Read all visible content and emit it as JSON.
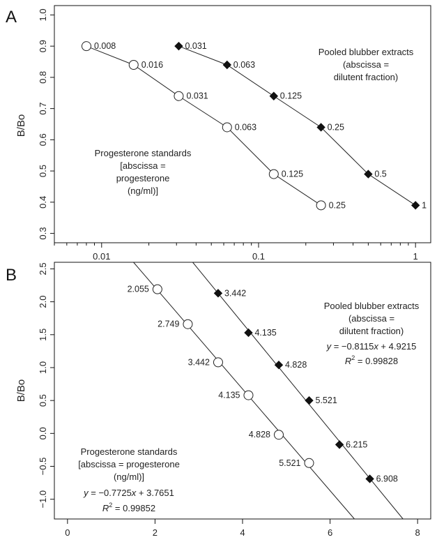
{
  "chart_data": [
    {
      "panel_label": "A",
      "type": "line",
      "ylabel": "B/Bo",
      "xscale": "log",
      "xlim": [
        0.005,
        1.25
      ],
      "ylim": [
        0.27,
        1.03
      ],
      "yticks": [
        0.3,
        0.4,
        0.5,
        0.6,
        0.7,
        0.8,
        0.9,
        1.0
      ],
      "ytick_labels": [
        "0.3",
        "0.4",
        "0.5",
        "0.6",
        "0.7",
        "0.8",
        "0.9",
        "1.0"
      ],
      "xticks": [
        0.01,
        0.1,
        1
      ],
      "xtick_labels": [
        "0.01",
        "0.1",
        "1"
      ],
      "series": [
        {
          "marker": "open-circle",
          "x": [
            0.008,
            0.016,
            0.031,
            0.063,
            0.125,
            0.25
          ],
          "y": [
            0.9,
            0.84,
            0.74,
            0.64,
            0.49,
            0.39
          ],
          "labels": [
            "0.008",
            "0.016",
            "0.031",
            "0.063",
            "0.125",
            "0.25"
          ]
        },
        {
          "marker": "filled-diamond",
          "x": [
            0.031,
            0.063,
            0.125,
            0.25,
            0.5,
            1
          ],
          "y": [
            0.9,
            0.84,
            0.74,
            0.64,
            0.49,
            0.39
          ],
          "labels": [
            "0.031",
            "0.063",
            "0.125",
            "0.25",
            "0.5",
            "1"
          ]
        }
      ],
      "annotations": [
        [
          "Pooled blubber extracts",
          "(abscissa =",
          "dilutent fraction)"
        ],
        [
          "Progesterone standards",
          "[abscissa =",
          "progesterone",
          "(ng/ml)]"
        ]
      ]
    },
    {
      "panel_label": "B",
      "type": "scatter",
      "ylabel": "B/Bo",
      "xlim": [
        -0.3,
        8.3
      ],
      "ylim": [
        -1.3,
        2.6
      ],
      "yticks": [
        -1.0,
        -0.5,
        0.0,
        0.5,
        1.0,
        1.5,
        2.0,
        2.5
      ],
      "ytick_labels": [
        "−1.0",
        "−0.5",
        "0.0",
        "0.5",
        "1.0",
        "1.5",
        "2.0",
        "2.5"
      ],
      "xticks": [
        0,
        2,
        4,
        6,
        8
      ],
      "xtick_labels": [
        "0",
        "2",
        "4",
        "6",
        "8"
      ],
      "series": [
        {
          "marker": "open-circle",
          "x": [
            2.055,
            2.749,
            3.442,
            4.135,
            4.828,
            5.521
          ],
          "y": [
            2.19,
            1.66,
            1.08,
            0.58,
            -0.02,
            -0.45
          ],
          "labels": [
            "2.055",
            "2.749",
            "3.442",
            "4.135",
            "4.828",
            "5.521"
          ],
          "fit": {
            "slope": -0.7725,
            "intercept": 3.7651
          }
        },
        {
          "marker": "filled-diamond",
          "x": [
            3.442,
            4.135,
            4.828,
            5.521,
            6.215,
            6.908
          ],
          "y": [
            2.13,
            1.53,
            1.04,
            0.5,
            -0.17,
            -0.69
          ],
          "labels": [
            "3.442",
            "4.135",
            "4.828",
            "5.521",
            "6.215",
            "6.908"
          ],
          "fit": {
            "slope": -0.8115,
            "intercept": 4.9215
          }
        }
      ],
      "annotations": {
        "blubber": [
          "Pooled blubber extracts",
          "(abscissa =",
          "dilutent fraction)"
        ],
        "blubber_eq": {
          "prefix": "y",
          "mid": " = −0.8115",
          "var": "x",
          "suffix": " + 4.9215"
        },
        "blubber_r2": {
          "prefix": "R",
          "sup": "2",
          "suffix": " = 0.99828"
        },
        "standards": [
          "Progesterone standards",
          "[abscissa = progesterone",
          "(ng/ml)]"
        ],
        "standards_eq": {
          "prefix": "y",
          "mid": " = −0.7725",
          "var": "x",
          "suffix": " + 3.7651"
        },
        "standards_r2": {
          "prefix": "R",
          "sup": "2",
          "suffix": " = 0.99852"
        }
      }
    }
  ]
}
